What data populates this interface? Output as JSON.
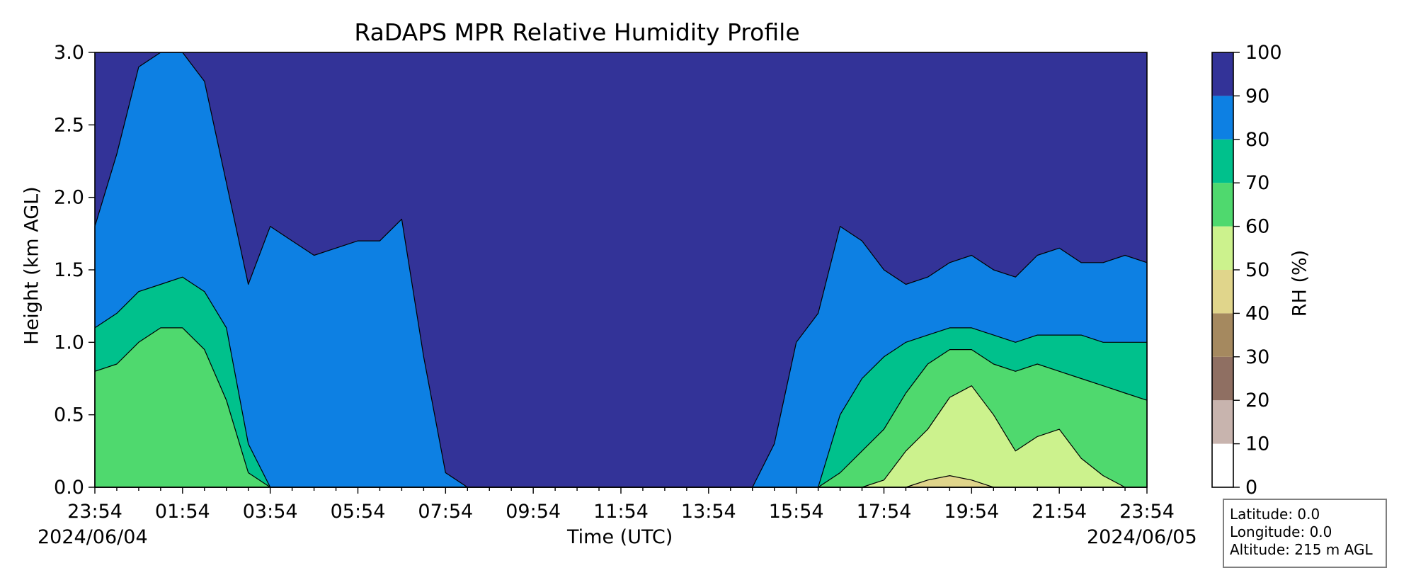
{
  "chart_data": {
    "type": "heatmap",
    "subtype": "filled-contour",
    "title": "RaDAPS MPR Relative Humidity Profile",
    "xlabel": "Time (UTC)",
    "ylabel": "Height (km AGL)",
    "x_tick_labels": [
      "23:54",
      "01:54",
      "03:54",
      "05:54",
      "07:54",
      "09:54",
      "11:54",
      "13:54",
      "15:54",
      "17:54",
      "19:54",
      "21:54",
      "23:54"
    ],
    "x_tick_hours": [
      0,
      2,
      4,
      6,
      8,
      10,
      12,
      14,
      16,
      18,
      20,
      22,
      24
    ],
    "xlim_hours": [
      0,
      24
    ],
    "date_start": "2024/06/04",
    "date_end": "2024/06/05",
    "y_tick_labels": [
      "0.0",
      "0.5",
      "1.0",
      "1.5",
      "2.0",
      "2.5",
      "3.0"
    ],
    "ylim": [
      0,
      3.0
    ],
    "colorbar": {
      "label": "RH (%)",
      "levels": [
        0,
        10,
        20,
        30,
        40,
        50,
        60,
        70,
        80,
        90,
        100
      ],
      "colors": [
        "#ffffff",
        "#c8b4ae",
        "#8f6f62",
        "#a5895f",
        "#e0d58b",
        "#ccf28d",
        "#4fd96e",
        "#00c18c",
        "#0d80e3",
        "#333398"
      ]
    },
    "boundary_heights_km": {
      "hours": [
        0,
        0.5,
        1,
        1.5,
        2,
        2.5,
        3,
        3.5,
        4,
        4.5,
        5,
        5.5,
        6,
        6.5,
        7,
        7.5,
        8,
        8.5,
        9,
        9.5,
        10,
        10.5,
        11,
        11.5,
        12,
        12.5,
        13,
        13.5,
        14,
        14.5,
        15,
        15.5,
        16,
        16.5,
        17,
        17.5,
        18,
        18.5,
        19,
        19.5,
        20,
        20.5,
        21,
        21.5,
        22,
        22.5,
        23,
        23.5,
        24
      ],
      "rh_50": [
        0,
        0,
        0,
        0,
        0,
        0,
        0,
        0,
        0,
        0,
        0,
        0,
        0,
        0,
        0,
        0,
        0,
        0,
        0,
        0,
        0,
        0,
        0,
        0,
        0,
        0,
        0,
        0,
        0,
        0,
        0,
        0,
        0,
        0,
        0,
        0,
        0,
        0,
        0.05,
        0.08,
        0.05,
        0,
        0,
        0,
        0,
        0,
        0,
        0,
        0
      ],
      "rh_60": [
        0,
        0,
        0,
        0,
        0,
        0,
        0,
        0,
        0,
        0,
        0,
        0,
        0,
        0,
        0,
        0,
        0,
        0,
        0,
        0,
        0,
        0,
        0,
        0,
        0,
        0,
        0,
        0,
        0,
        0,
        0,
        0,
        0,
        0,
        0,
        0,
        0.05,
        0.25,
        0.4,
        0.62,
        0.7,
        0.5,
        0.25,
        0.35,
        0.4,
        0.2,
        0.08,
        0,
        0
      ],
      "rh_70": [
        0.8,
        0.85,
        1.0,
        1.1,
        1.1,
        0.95,
        0.6,
        0.1,
        0,
        0,
        0,
        0,
        0,
        0,
        0,
        0,
        0,
        0,
        0,
        0,
        0,
        0,
        0,
        0,
        0,
        0,
        0,
        0,
        0,
        0,
        0,
        0,
        0,
        0,
        0.1,
        0.25,
        0.4,
        0.65,
        0.85,
        0.95,
        0.95,
        0.85,
        0.8,
        0.85,
        0.8,
        0.75,
        0.7,
        0.65,
        0.6
      ],
      "rh_80": [
        1.1,
        1.2,
        1.35,
        1.4,
        1.45,
        1.35,
        1.1,
        0.3,
        0,
        0,
        0,
        0,
        0,
        0,
        0,
        0,
        0,
        0,
        0,
        0,
        0,
        0,
        0,
        0,
        0,
        0,
        0,
        0,
        0,
        0,
        0,
        0,
        0,
        0,
        0.5,
        0.75,
        0.9,
        1.0,
        1.05,
        1.1,
        1.1,
        1.05,
        1.0,
        1.05,
        1.05,
        1.05,
        1.0,
        1.0,
        1.0
      ],
      "rh_90": [
        1.8,
        2.3,
        2.9,
        3.0,
        3.0,
        2.8,
        2.1,
        1.4,
        1.8,
        1.7,
        1.6,
        1.65,
        1.7,
        1.7,
        1.85,
        0.9,
        0.1,
        0,
        0,
        0,
        0,
        0,
        0,
        0,
        0,
        0,
        0,
        0,
        0,
        0,
        0,
        0.3,
        1.0,
        1.2,
        1.8,
        1.7,
        1.5,
        1.4,
        1.45,
        1.55,
        1.6,
        1.5,
        1.45,
        1.6,
        1.65,
        1.55,
        1.55,
        1.6,
        1.55
      ]
    }
  },
  "station_info": {
    "latitude": "Latitude: 0.0",
    "longitude": "Longitude: 0.0",
    "altitude": "Altitude: 215 m AGL"
  }
}
